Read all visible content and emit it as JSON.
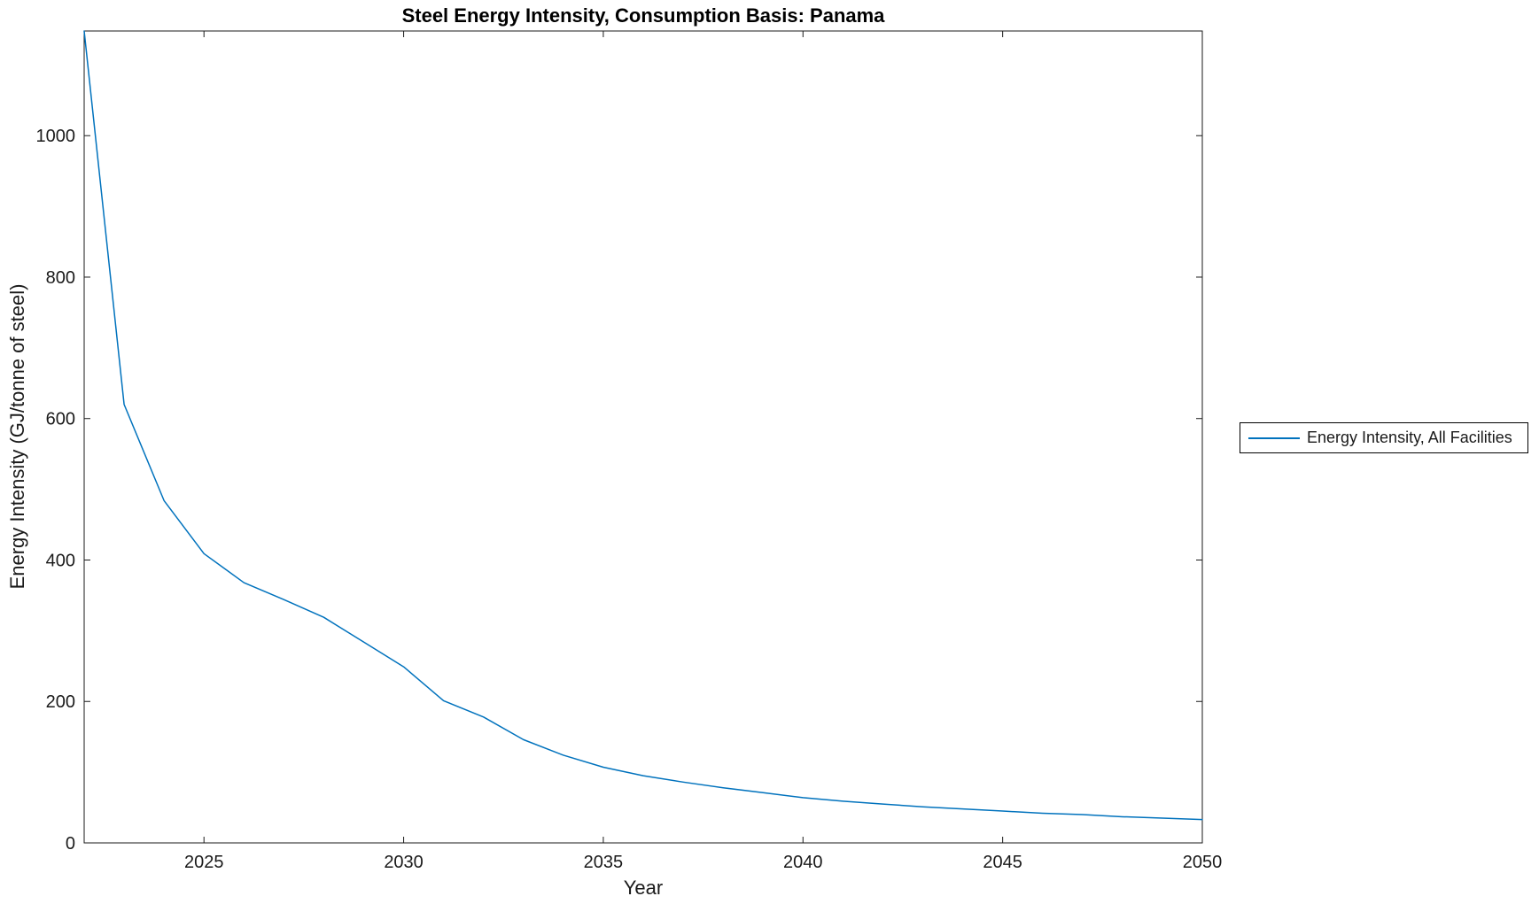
{
  "title": "Steel Energy Intensity, Consumption Basis: Panama",
  "chart_data": {
    "type": "line",
    "title": "Steel Energy Intensity, Consumption Basis: Panama",
    "xlabel": "Year",
    "ylabel": "Energy Intensity (GJ/tonne of steel)",
    "xlim": [
      2022,
      2050
    ],
    "ylim": [
      0,
      1148
    ],
    "xticks": [
      2025,
      2030,
      2035,
      2040,
      2045,
      2050
    ],
    "yticks": [
      0,
      200,
      400,
      600,
      800,
      1000
    ],
    "grid": false,
    "box": true,
    "tick_direction": "in",
    "legend_position": "outside-right",
    "series": [
      {
        "name": "Energy Intensity, All Facilities",
        "color": "#0072BD",
        "x": [
          2022,
          2023,
          2024,
          2025,
          2026,
          2027,
          2028,
          2029,
          2030,
          2031,
          2032,
          2033,
          2034,
          2035,
          2036,
          2037,
          2038,
          2039,
          2040,
          2041,
          2042,
          2043,
          2044,
          2045,
          2046,
          2047,
          2048,
          2049,
          2050
        ],
        "y": [
          1148,
          620,
          484,
          409,
          368,
          344,
          319,
          284,
          249,
          201,
          178,
          146,
          124,
          107,
          95,
          86,
          78,
          71,
          64,
          59,
          55,
          51,
          48,
          45,
          42,
          40,
          37,
          35,
          33
        ]
      }
    ]
  },
  "legend": {
    "entries": [
      {
        "label": "Energy Intensity, All Facilities",
        "color": "#0072BD"
      }
    ]
  },
  "colors": {
    "line": "#0072BD",
    "axis": "#1a1a1a",
    "background": "#ffffff"
  }
}
